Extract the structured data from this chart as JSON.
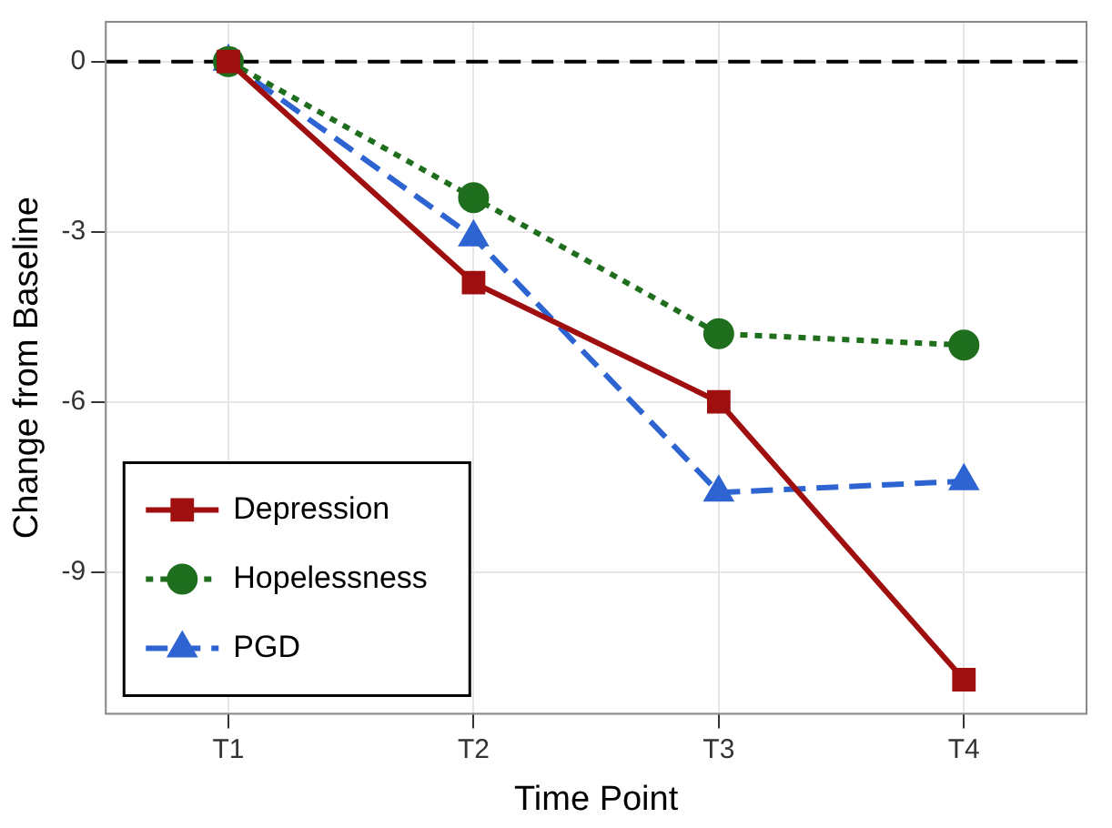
{
  "chart_data": {
    "type": "line",
    "xlabel": "Time Point",
    "ylabel": "Change from Baseline",
    "categories": [
      "T1",
      "T2",
      "T3",
      "T4"
    ],
    "series": [
      {
        "name": "Depression",
        "color": "#a00f0f",
        "values": [
          0,
          -3.9,
          -6.0,
          -10.9
        ],
        "marker": "square",
        "line_style": "solid"
      },
      {
        "name": "Hopelessness",
        "color": "#1e6e1e",
        "values": [
          0,
          -2.4,
          -4.8,
          -5.0
        ],
        "marker": "circle",
        "line_style": "dotted"
      },
      {
        "name": "PGD",
        "color": "#2d64d2",
        "values": [
          0,
          -3.1,
          -7.6,
          -7.4
        ],
        "marker": "triangle",
        "line_style": "dashed"
      }
    ],
    "ylim": [
      -11.5,
      0.7
    ],
    "yticks": [
      0,
      -3,
      -6,
      -9
    ],
    "grid": true,
    "legend": "bottom left",
    "ref_lines": [
      {
        "axis": "y",
        "value": 0,
        "color": "#000000",
        "line_style": "dashed"
      }
    ]
  }
}
